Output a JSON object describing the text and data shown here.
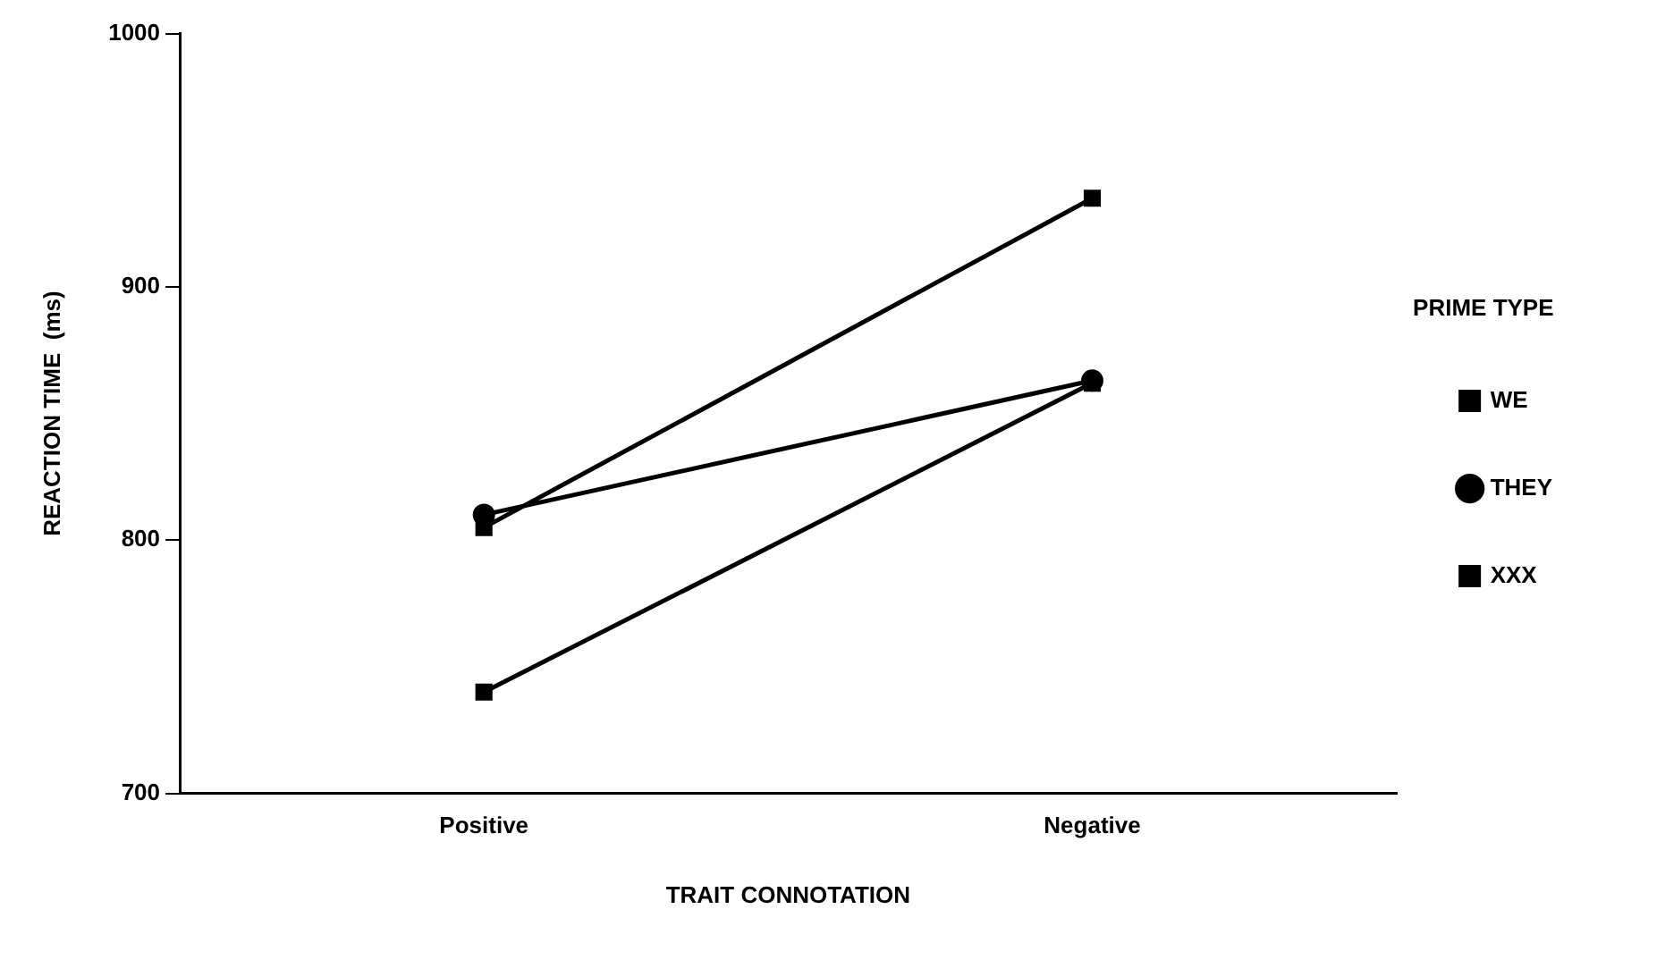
{
  "chart_data": {
    "type": "line",
    "xlabel": "TRAIT CONNOTATION",
    "ylabel": "REACTION TIME  (ms)",
    "legend_title": "PRIME TYPE",
    "categories": [
      "Positive",
      "Negative"
    ],
    "series": [
      {
        "name": "WE",
        "color": "#000000",
        "marker": "square",
        "values": [
          805,
          935
        ]
      },
      {
        "name": "THEY",
        "color": "#000000",
        "marker": "circle",
        "values": [
          810,
          863
        ]
      },
      {
        "name": "XXX",
        "color": "#000000",
        "marker": "square",
        "values": [
          740,
          862
        ]
      }
    ],
    "ylim": [
      700,
      1000
    ],
    "yticks": [
      700,
      800,
      900,
      1000
    ],
    "grid": false,
    "legend": "right",
    "line_style": "solid"
  }
}
